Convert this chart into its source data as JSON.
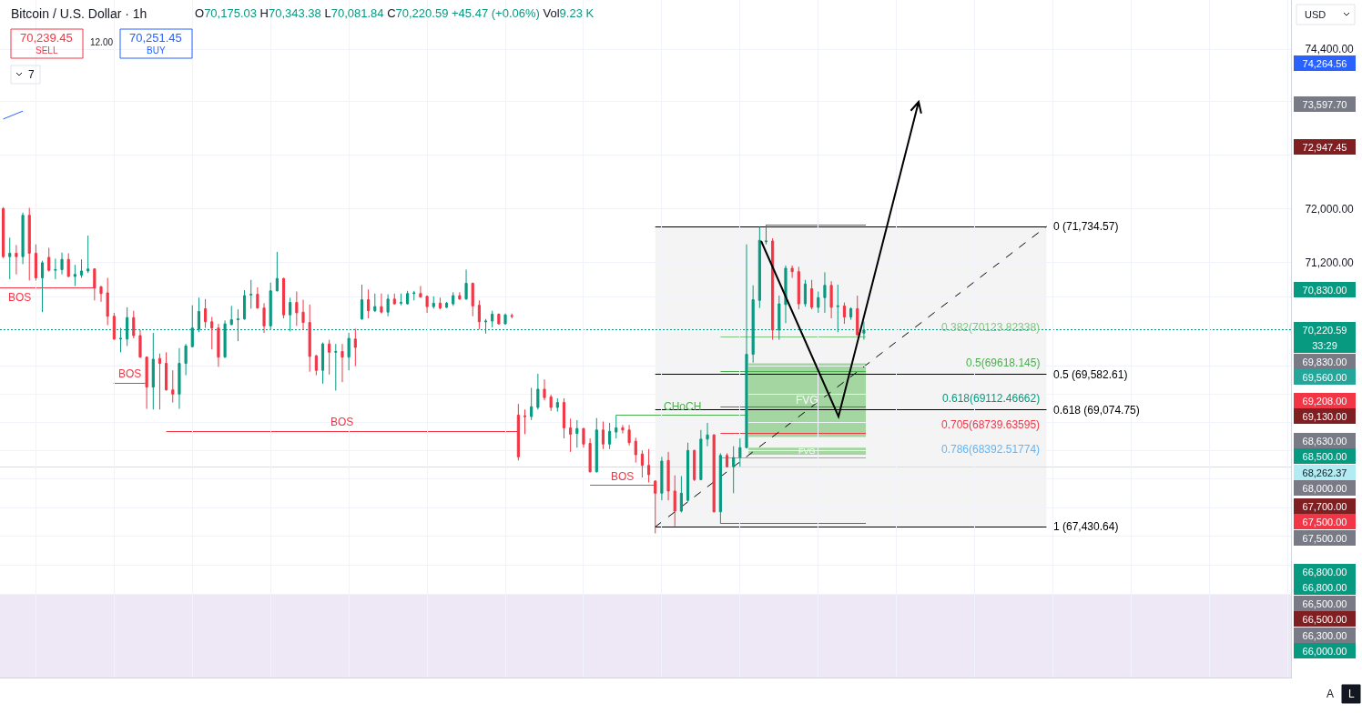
{
  "chart_data": {
    "type": "candlestick",
    "title": "Bitcoin / U.S. Dollar · 1h",
    "subtitle": "O70,175.03 H70,343.38 L70,081.84 C70,220.59 +45.47 (+0.06%) Vol9.23 K",
    "categories": [
      null,
      null,
      null,
      null,
      null,
      null,
      null,
      null,
      null,
      null,
      null,
      null,
      null,
      null,
      null,
      null,
      null,
      null,
      null,
      null,
      null,
      null,
      null,
      null,
      null,
      null,
      null,
      null,
      null,
      null,
      null,
      null,
      null,
      null,
      null,
      null,
      null,
      null,
      null,
      null,
      null,
      null,
      null,
      null,
      null,
      null,
      null,
      null,
      null,
      null,
      null,
      null,
      null,
      null,
      null,
      null,
      null,
      null,
      null,
      null,
      null,
      null,
      null,
      null,
      null,
      null,
      null,
      null,
      null,
      null,
      null,
      null,
      null,
      null,
      null,
      null,
      null,
      null,
      null,
      null,
      null,
      null,
      null,
      null,
      null,
      null,
      null,
      null,
      null,
      null,
      null,
      null,
      null,
      null,
      null,
      null,
      null,
      null,
      null,
      null,
      null,
      null,
      null,
      null,
      null,
      null,
      null,
      null,
      null,
      null,
      null,
      null,
      null,
      null,
      null,
      null,
      null,
      null,
      null,
      null,
      null,
      null,
      null,
      null,
      null,
      null,
      null,
      null,
      null,
      null,
      null,
      null,
      null,
      null,
      null,
      null,
      null,
      null,
      null,
      null,
      null,
      null,
      null,
      null,
      null,
      null,
      null,
      null,
      null,
      null,
      null,
      null,
      null,
      null,
      null,
      null,
      null,
      null,
      null,
      null,
      null,
      null,
      null,
      null,
      null,
      null,
      null,
      null,
      null,
      null,
      null,
      null,
      null,
      null,
      null,
      null,
      null,
      null,
      null,
      null,
      null,
      null,
      null,
      null,
      null,
      null,
      null,
      null,
      null,
      null,
      null,
      null,
      null,
      null,
      null,
      null,
      null,
      null
    ],
    "ohlc": [
      [
        72000,
        72020,
        71270,
        71290
      ],
      [
        71290,
        71570,
        70960,
        71340
      ],
      [
        71340,
        71460,
        71030,
        71290
      ],
      [
        71290,
        71940,
        71180,
        71900
      ],
      [
        71900,
        72010,
        70940,
        71340
      ],
      [
        71340,
        71470,
        70940,
        70980
      ],
      [
        70980,
        71230,
        70480,
        71200
      ],
      [
        71280,
        71420,
        71070,
        71090
      ],
      [
        71090,
        71260,
        70960,
        71100
      ],
      [
        71100,
        71350,
        71030,
        71250
      ],
      [
        71250,
        71340,
        70990,
        71000
      ],
      [
        71000,
        71170,
        70860,
        71030
      ],
      [
        71020,
        71250,
        70980,
        71080
      ],
      [
        71080,
        71600,
        71050,
        71110
      ],
      [
        71110,
        71120,
        70650,
        70830
      ],
      [
        70850,
        70860,
        70630,
        70750
      ],
      [
        70760,
        70980,
        70290,
        70420
      ],
      [
        70420,
        70470,
        70080,
        70090
      ],
      [
        70090,
        70250,
        69900,
        70100
      ],
      [
        70090,
        70550,
        69990,
        70400
      ],
      [
        70400,
        70500,
        70100,
        70140
      ],
      [
        70140,
        70220,
        69820,
        69830
      ],
      [
        69830,
        69840,
        69090,
        69400
      ],
      [
        69400,
        70180,
        69080,
        69800
      ],
      [
        69810,
        69880,
        69080,
        69740
      ],
      [
        69740,
        69900,
        69350,
        69360
      ],
      [
        69360,
        69640,
        69180,
        69300
      ],
      [
        69300,
        69960,
        69090,
        69740
      ],
      [
        69740,
        70020,
        69570,
        69990
      ],
      [
        69980,
        70580,
        69970,
        70250
      ],
      [
        70230,
        70690,
        70190,
        70490
      ],
      [
        70530,
        70670,
        70250,
        70340
      ],
      [
        70340,
        70410,
        69940,
        70250
      ],
      [
        70250,
        70310,
        69690,
        69830
      ],
      [
        69830,
        70360,
        69820,
        70310
      ],
      [
        70300,
        70570,
        70290,
        70370
      ],
      [
        70370,
        70520,
        70060,
        70380
      ],
      [
        70380,
        70800,
        70370,
        70720
      ],
      [
        70730,
        70950,
        70530,
        70740
      ],
      [
        70740,
        70840,
        70530,
        70540
      ],
      [
        70540,
        70610,
        70180,
        70280
      ],
      [
        70280,
        70910,
        70220,
        70790
      ],
      [
        70790,
        71360,
        70780,
        70970
      ],
      [
        70970,
        70980,
        70390,
        70440
      ],
      [
        70440,
        70690,
        70200,
        70620
      ],
      [
        70620,
        70780,
        70280,
        70470
      ],
      [
        70480,
        70660,
        70220,
        70330
      ],
      [
        70330,
        70590,
        69620,
        69840
      ],
      [
        69850,
        69860,
        69570,
        69640
      ],
      [
        69640,
        70040,
        69450,
        70020
      ],
      [
        70020,
        70080,
        69580,
        69900
      ],
      [
        69900,
        70020,
        69350,
        69910
      ],
      [
        69910,
        70020,
        69470,
        69830
      ],
      [
        69830,
        70180,
        69640,
        70100
      ],
      [
        70090,
        70240,
        69700,
        69970
      ],
      [
        70380,
        70880,
        70370,
        70660
      ],
      [
        70660,
        70810,
        70390,
        70500
      ],
      [
        70500,
        70750,
        70480,
        70560
      ],
      [
        70560,
        70750,
        70460,
        70480
      ],
      [
        70480,
        70740,
        70420,
        70670
      ],
      [
        70670,
        70750,
        70590,
        70600
      ],
      [
        70610,
        70750,
        70580,
        70620
      ],
      [
        70600,
        70790,
        70590,
        70750
      ],
      [
        70750,
        70790,
        70650,
        70760
      ],
      [
        70750,
        70860,
        70690,
        70700
      ],
      [
        70710,
        70720,
        70470,
        70560
      ],
      [
        70560,
        70710,
        70530,
        70610
      ],
      [
        70610,
        70690,
        70520,
        70540
      ],
      [
        70550,
        70630,
        70540,
        70610
      ],
      [
        70600,
        70770,
        70570,
        70720
      ],
      [
        70720,
        70770,
        70660,
        70670
      ],
      [
        70670,
        71100,
        70660,
        70900
      ],
      [
        70900,
        70910,
        70420,
        70570
      ],
      [
        70580,
        70650,
        70230,
        70340
      ],
      [
        70340,
        70380,
        70170,
        70350
      ],
      [
        70350,
        70500,
        70260,
        70450
      ],
      [
        70450,
        70460,
        70300,
        70310
      ],
      [
        70310,
        70460,
        70300,
        70440
      ],
      [
        70430,
        70460,
        70390,
        70420
      ],
      [
        69000,
        69160,
        68360,
        68410
      ],
      [
        68990,
        69080,
        68730,
        68980
      ],
      [
        68980,
        69390,
        68930,
        69120
      ],
      [
        69110,
        69590,
        69080,
        69370
      ],
      [
        69370,
        69510,
        69210,
        69250
      ],
      [
        69260,
        69290,
        69060,
        69110
      ],
      [
        69110,
        69240,
        69050,
        69180
      ],
      [
        69180,
        69240,
        68670,
        68820
      ],
      [
        68820,
        68950,
        68480,
        68730
      ],
      [
        68740,
        68930,
        68540,
        68810
      ],
      [
        68810,
        68820,
        68540,
        68590
      ],
      [
        68600,
        68670,
        68190,
        68200
      ],
      [
        68200,
        68960,
        68190,
        68790
      ],
      [
        68790,
        68910,
        68520,
        68590
      ],
      [
        68590,
        68890,
        68520,
        68770
      ],
      [
        68760,
        69000,
        68670,
        68820
      ],
      [
        68820,
        68860,
        68740,
        68790
      ],
      [
        68790,
        68860,
        68570,
        68610
      ],
      [
        68630,
        68680,
        68330,
        68440
      ],
      [
        68450,
        68500,
        68120,
        68290
      ],
      [
        68290,
        68520,
        68050,
        68160
      ],
      [
        68070,
        68080,
        67340,
        67900
      ],
      [
        67900,
        68410,
        67800,
        68350
      ],
      [
        68360,
        68480,
        67800,
        67930
      ],
      [
        67930,
        68150,
        67440,
        67650
      ],
      [
        67650,
        68140,
        67630,
        67900
      ],
      [
        67800,
        68610,
        67780,
        68500
      ],
      [
        68500,
        68510,
        68070,
        68090
      ],
      [
        68090,
        68790,
        68080,
        68660
      ],
      [
        68660,
        68890,
        68560,
        68720
      ],
      [
        68720,
        68730,
        67630,
        67640
      ],
      [
        67640,
        68460,
        67475,
        68430
      ],
      [
        68430,
        68460,
        68260,
        68270
      ],
      [
        68270,
        68560,
        67900,
        68400
      ],
      [
        68400,
        68670,
        68270,
        68540
      ],
      [
        68540,
        71470,
        68530,
        69870
      ],
      [
        69870,
        70870,
        69750,
        70660
      ],
      [
        70650,
        71730,
        70540,
        71530
      ],
      [
        71510,
        71760,
        71470,
        71520
      ],
      [
        71520,
        71560,
        70080,
        70220
      ],
      [
        70220,
        70720,
        70080,
        70600
      ],
      [
        70590,
        71160,
        70320,
        71120
      ],
      [
        71120,
        71160,
        70980,
        71070
      ],
      [
        71070,
        71140,
        70520,
        70600
      ],
      [
        70600,
        70950,
        70560,
        70890
      ],
      [
        70820,
        70950,
        70520,
        70550
      ],
      [
        70550,
        70780,
        70470,
        70690
      ],
      [
        70690,
        71060,
        70470,
        70870
      ],
      [
        70870,
        70930,
        70390,
        70550
      ],
      [
        70560,
        70880,
        70190,
        70570
      ],
      [
        70570,
        70620,
        70310,
        70410
      ],
      [
        70410,
        70550,
        70370,
        70530
      ],
      [
        70530,
        70720,
        70140,
        70150
      ],
      [
        70175.03,
        70343.38,
        70081.84,
        70220.59
      ],
      null,
      null,
      null,
      null,
      null,
      null,
      null,
      null,
      null,
      null,
      null,
      null,
      null,
      null,
      null,
      null,
      null,
      null,
      null,
      null,
      null,
      null,
      null,
      null,
      null,
      null,
      null,
      null,
      null,
      null,
      null,
      null,
      null,
      null,
      null,
      null,
      null,
      null,
      null,
      null,
      null,
      null,
      null,
      null,
      null,
      null,
      null,
      null,
      null,
      null,
      null,
      null,
      null,
      null,
      null,
      null,
      null,
      null,
      null,
      null,
      null,
      null,
      null,
      null,
      null
    ],
    "colors": [
      "#f23645",
      "#089981",
      "#f23645",
      "#089981",
      "#f23645",
      "#f23645",
      "#089981",
      "#f23645",
      "#089981",
      "#089981",
      "#f23645",
      "#089981",
      "#089981",
      "#089981",
      "#f23645",
      "#f23645",
      "#f23645",
      "#f23645",
      "#089981",
      "#089981",
      "#f23645",
      "#f23645",
      "#f23645",
      "#089981",
      "#f23645",
      "#f23645",
      "#f23645",
      "#089981",
      "#089981",
      "#089981",
      "#089981",
      "#f23645",
      "#f23645",
      "#f23645",
      "#089981",
      "#089981",
      "#089981",
      "#089981",
      "#089981",
      "#f23645",
      "#f23645",
      "#089981",
      "#089981",
      "#f23645",
      "#089981",
      "#f23645",
      "#f23645",
      "#f23645",
      "#f23645",
      "#089981",
      "#f23645",
      "#089981",
      "#f23645",
      "#089981",
      "#f23645",
      "#089981",
      "#f23645",
      "#089981",
      "#f23645",
      "#089981",
      "#f23645",
      "#089981",
      "#089981",
      "#089981",
      "#f23645",
      "#f23645",
      "#089981",
      "#f23645",
      "#089981",
      "#089981",
      "#f23645",
      "#089981",
      "#f23645",
      "#f23645",
      "#089981",
      "#089981",
      "#f23645",
      "#089981",
      "#f23645",
      "#f23645",
      "#f23645",
      "#089981",
      "#089981",
      "#f23645",
      "#f23645",
      "#089981",
      "#f23645",
      "#f23645",
      "#089981",
      "#f23645",
      "#f23645",
      "#089981",
      "#f23645",
      "#089981",
      "#089981",
      "#f23645",
      "#f23645",
      "#f23645",
      "#f23645",
      "#f23645",
      "#f23645",
      "#089981",
      "#f23645",
      "#f23645",
      "#089981",
      "#089981",
      "#f23645",
      "#089981",
      "#089981",
      "#f23645",
      "#089981",
      "#f23645",
      "#089981",
      "#089981",
      "#089981",
      "#089981",
      "#089981",
      "#089981",
      "#f23645",
      "#089981",
      "#089981",
      "#f23645",
      "#f23645",
      "#089981",
      "#f23645",
      "#089981",
      "#089981",
      "#f23645",
      "#089981",
      "#f23645",
      "#089981",
      "#f23645",
      "#089981",
      null,
      null,
      null,
      null,
      null,
      null,
      null,
      null,
      null,
      null,
      null,
      null,
      null,
      null,
      null,
      null,
      null,
      null,
      null,
      null,
      null,
      null,
      null,
      null,
      null,
      null,
      null,
      null,
      null,
      null,
      null,
      null,
      null,
      null,
      null,
      null,
      null,
      null,
      null,
      null,
      null,
      null,
      null,
      null,
      null,
      null,
      null,
      null,
      null,
      null,
      null,
      null,
      null,
      null,
      null,
      null,
      null,
      null,
      null,
      null,
      null,
      null,
      null,
      null,
      null
    ],
    "series": [
      {
        "type": "line",
        "color": "#2962ff",
        "values": [
          73340,
          null,
          null,
          73460,
          null,
          null,
          null,
          null,
          null,
          null,
          null,
          null,
          null,
          null,
          null,
          null,
          null,
          null,
          null,
          null,
          null,
          null,
          null,
          null,
          null,
          null,
          null,
          null,
          null,
          null,
          null,
          null,
          null,
          null,
          null,
          null,
          null,
          null,
          null,
          null,
          null,
          null,
          null,
          null,
          null,
          null,
          null,
          null,
          null,
          null,
          null,
          null,
          null,
          null,
          null,
          null,
          null,
          null,
          null,
          null,
          null,
          null,
          null,
          null,
          null,
          null,
          null,
          null,
          null,
          null,
          null,
          null,
          null,
          null,
          null,
          null,
          null,
          null,
          null,
          null,
          null,
          null,
          null,
          null,
          null,
          null,
          null,
          null,
          null,
          null,
          null,
          null,
          null,
          null,
          null,
          null,
          null,
          null,
          null,
          null,
          null,
          null,
          null,
          null,
          null,
          null,
          null,
          null,
          null,
          null,
          null,
          null,
          null,
          null,
          null,
          null,
          null,
          null,
          null,
          null,
          null,
          null,
          null,
          null,
          null,
          null,
          null,
          null,
          null,
          null,
          null,
          null,
          null,
          null,
          null,
          null,
          null,
          null,
          null,
          null,
          null,
          null,
          null,
          null,
          null,
          null,
          null,
          null,
          null,
          null,
          null,
          null,
          null,
          null,
          null,
          null,
          null,
          null,
          null,
          null,
          null,
          null,
          null,
          null,
          null,
          null,
          null,
          null,
          null,
          null,
          null,
          null,
          null,
          null,
          null,
          null,
          null,
          null,
          null,
          null,
          null,
          null,
          null,
          null,
          null,
          null,
          null,
          null,
          null,
          null,
          null,
          null,
          null,
          null,
          null,
          null,
          null,
          null
        ]
      }
    ],
    "ref_lines": [
      {
        "axis": "y",
        "value": 71734.57,
        "label": "0 (71,734.57)",
        "color": "#000000"
      },
      {
        "axis": "y",
        "value": 69582.61,
        "label": "0.5 (69,582.61)",
        "color": "#000000"
      },
      {
        "axis": "y",
        "value": 69074.75,
        "label": "0.618 (69,074.75)",
        "color": "#000000"
      },
      {
        "axis": "y",
        "value": 67430.64,
        "label": "1 (67,430.64)",
        "color": "#000000"
      },
      {
        "axis": "y",
        "value": 70123.82338,
        "label": "0.382(70123.82338)",
        "color": "#81c784"
      },
      {
        "axis": "y",
        "value": 69618.145,
        "label": "0.5(69618.145)",
        "color": "#4caf50"
      },
      {
        "axis": "y",
        "value": 69112.46662,
        "label": "0.618(69112.46662)",
        "color": "#089981"
      },
      {
        "axis": "y",
        "value": 68739.63595,
        "label": "0.705(68739.63595)",
        "color": "#f23645"
      },
      {
        "axis": "y",
        "value": 68392.51774,
        "label": "0.786(68392.51774)",
        "color": "#64b5f6"
      },
      {
        "axis": "y",
        "value": 67475,
        "color": "#2962ff"
      },
      {
        "axis": "y",
        "value": 70830,
        "label": "BOS",
        "color": "#f23645"
      },
      {
        "axis": "y",
        "value": 69460,
        "label": "BOS",
        "color": "#f23645"
      },
      {
        "axis": "y",
        "value": 68770,
        "label": "BOS",
        "color": "#f23645"
      },
      {
        "axis": "y",
        "value": 68010,
        "label": "BOS",
        "color": "#f23645"
      },
      {
        "axis": "y",
        "value": 69000,
        "label": "CHoCH",
        "color": "#4caf50"
      },
      {
        "axis": "y",
        "value": 70220.59,
        "label": "70,220.59",
        "color": "#089981",
        "line_style": "dotted"
      },
      {
        "axis": "y",
        "value": 68262.37,
        "label": "68,262.37",
        "color": "#b2ebf2"
      }
    ],
    "bands": [
      {
        "axis": "y",
        "from": 67430.64,
        "to": 71734.57,
        "color": "#f4f4f4"
      },
      {
        "axis": "y",
        "from": 68690,
        "to": 69740,
        "label": "FVG",
        "color": "#a3d6a0"
      },
      {
        "axis": "y",
        "from": 68440,
        "to": 68540,
        "label": "FVG",
        "color": "#a3d6a0"
      },
      {
        "axis": "y",
        "from": 65370,
        "to": 66500,
        "color": "#ede7f6"
      }
    ],
    "annotations": [
      "70,239.45",
      "SELL",
      "12.00",
      "70,251.45",
      "BUY",
      "7",
      "USD",
      "A",
      "L",
      "33:29",
      "74,264.56",
      "73,597.70",
      "72,947.45",
      "70,830.00",
      "69,830.00",
      "69,560.00",
      "69,208.00",
      "69,130.00",
      "68,630.00",
      "68,500.00",
      "68,000.00",
      "67,700.00",
      "67,500.00",
      "67,500.00",
      "66,800.00",
      "66,800.00",
      "66,500.00",
      "66,500.00",
      "66,300.00",
      "66,000.00"
    ],
    "ylim": [
      65370,
      75160
    ],
    "yticks": [
      {
        "value": 74400,
        "label": "74,400.00"
      },
      {
        "value": 73600,
        "label": null
      },
      {
        "value": 72800,
        "label": null
      },
      {
        "value": 72000,
        "label": "72,000.00"
      },
      {
        "value": 71200,
        "label": "71,200.00"
      },
      {
        "value": 70700,
        "label": null
      },
      {
        "value": 69700,
        "label": null
      },
      {
        "value": 69300,
        "label": null
      },
      {
        "value": 68900,
        "label": null
      },
      {
        "value": 68500,
        "label": null
      },
      {
        "value": 68100,
        "label": null
      },
      {
        "value": 67700,
        "label": null
      },
      {
        "value": 67300,
        "label": null
      },
      {
        "value": 66900,
        "label": null
      },
      {
        "value": 66500,
        "label": null
      }
    ],
    "log": "y",
    "grid": true,
    "tick_labels": "y"
  }
}
